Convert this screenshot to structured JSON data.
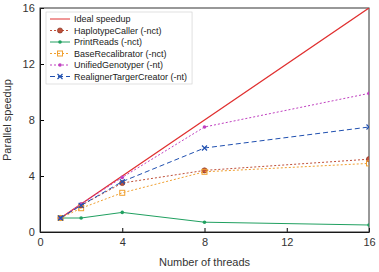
{
  "chart_data": {
    "type": "line",
    "x_label": "Number of threads",
    "y_label": "Parallel speedup",
    "x": [
      1,
      2,
      4,
      8,
      16
    ],
    "xlim": [
      0,
      16
    ],
    "xticks": [
      0,
      4,
      8,
      12,
      16
    ],
    "ylim": [
      0,
      16
    ],
    "yticks": [
      0,
      4,
      8,
      12,
      16
    ],
    "grid": false,
    "legend": "top-left",
    "series": [
      {
        "name": "Ideal speedup",
        "color": "#e03030",
        "marker": "none",
        "line_style": "solid",
        "values": [
          1,
          2,
          4,
          8,
          16
        ]
      },
      {
        "name": "HaplotypeCaller (-nct)",
        "color": "#c0503a",
        "marker": "circle",
        "line_style": "dotted",
        "values": [
          1,
          1.9,
          3.5,
          4.4,
          5.2
        ]
      },
      {
        "name": "PrintReads (-nct)",
        "color": "#20a060",
        "marker": "dot",
        "line_style": "solid",
        "values": [
          1,
          1.0,
          1.4,
          0.7,
          0.5
        ]
      },
      {
        "name": "BaseRecalibrator (-nct)",
        "color": "#f0a030",
        "marker": "square",
        "line_style": "dotted",
        "values": [
          1,
          1.7,
          2.8,
          4.3,
          4.9
        ]
      },
      {
        "name": "UnifiedGenotyper (-nt)",
        "color": "#c040c0",
        "marker": "dot",
        "line_style": "dotted",
        "values": [
          1,
          2.0,
          3.9,
          7.5,
          9.9
        ]
      },
      {
        "name": "RealignerTargerCreator (-nt)",
        "color": "#2050b0",
        "marker": "x",
        "line_style": "dashed",
        "values": [
          1,
          1.9,
          3.6,
          6.0,
          7.5
        ]
      }
    ]
  }
}
